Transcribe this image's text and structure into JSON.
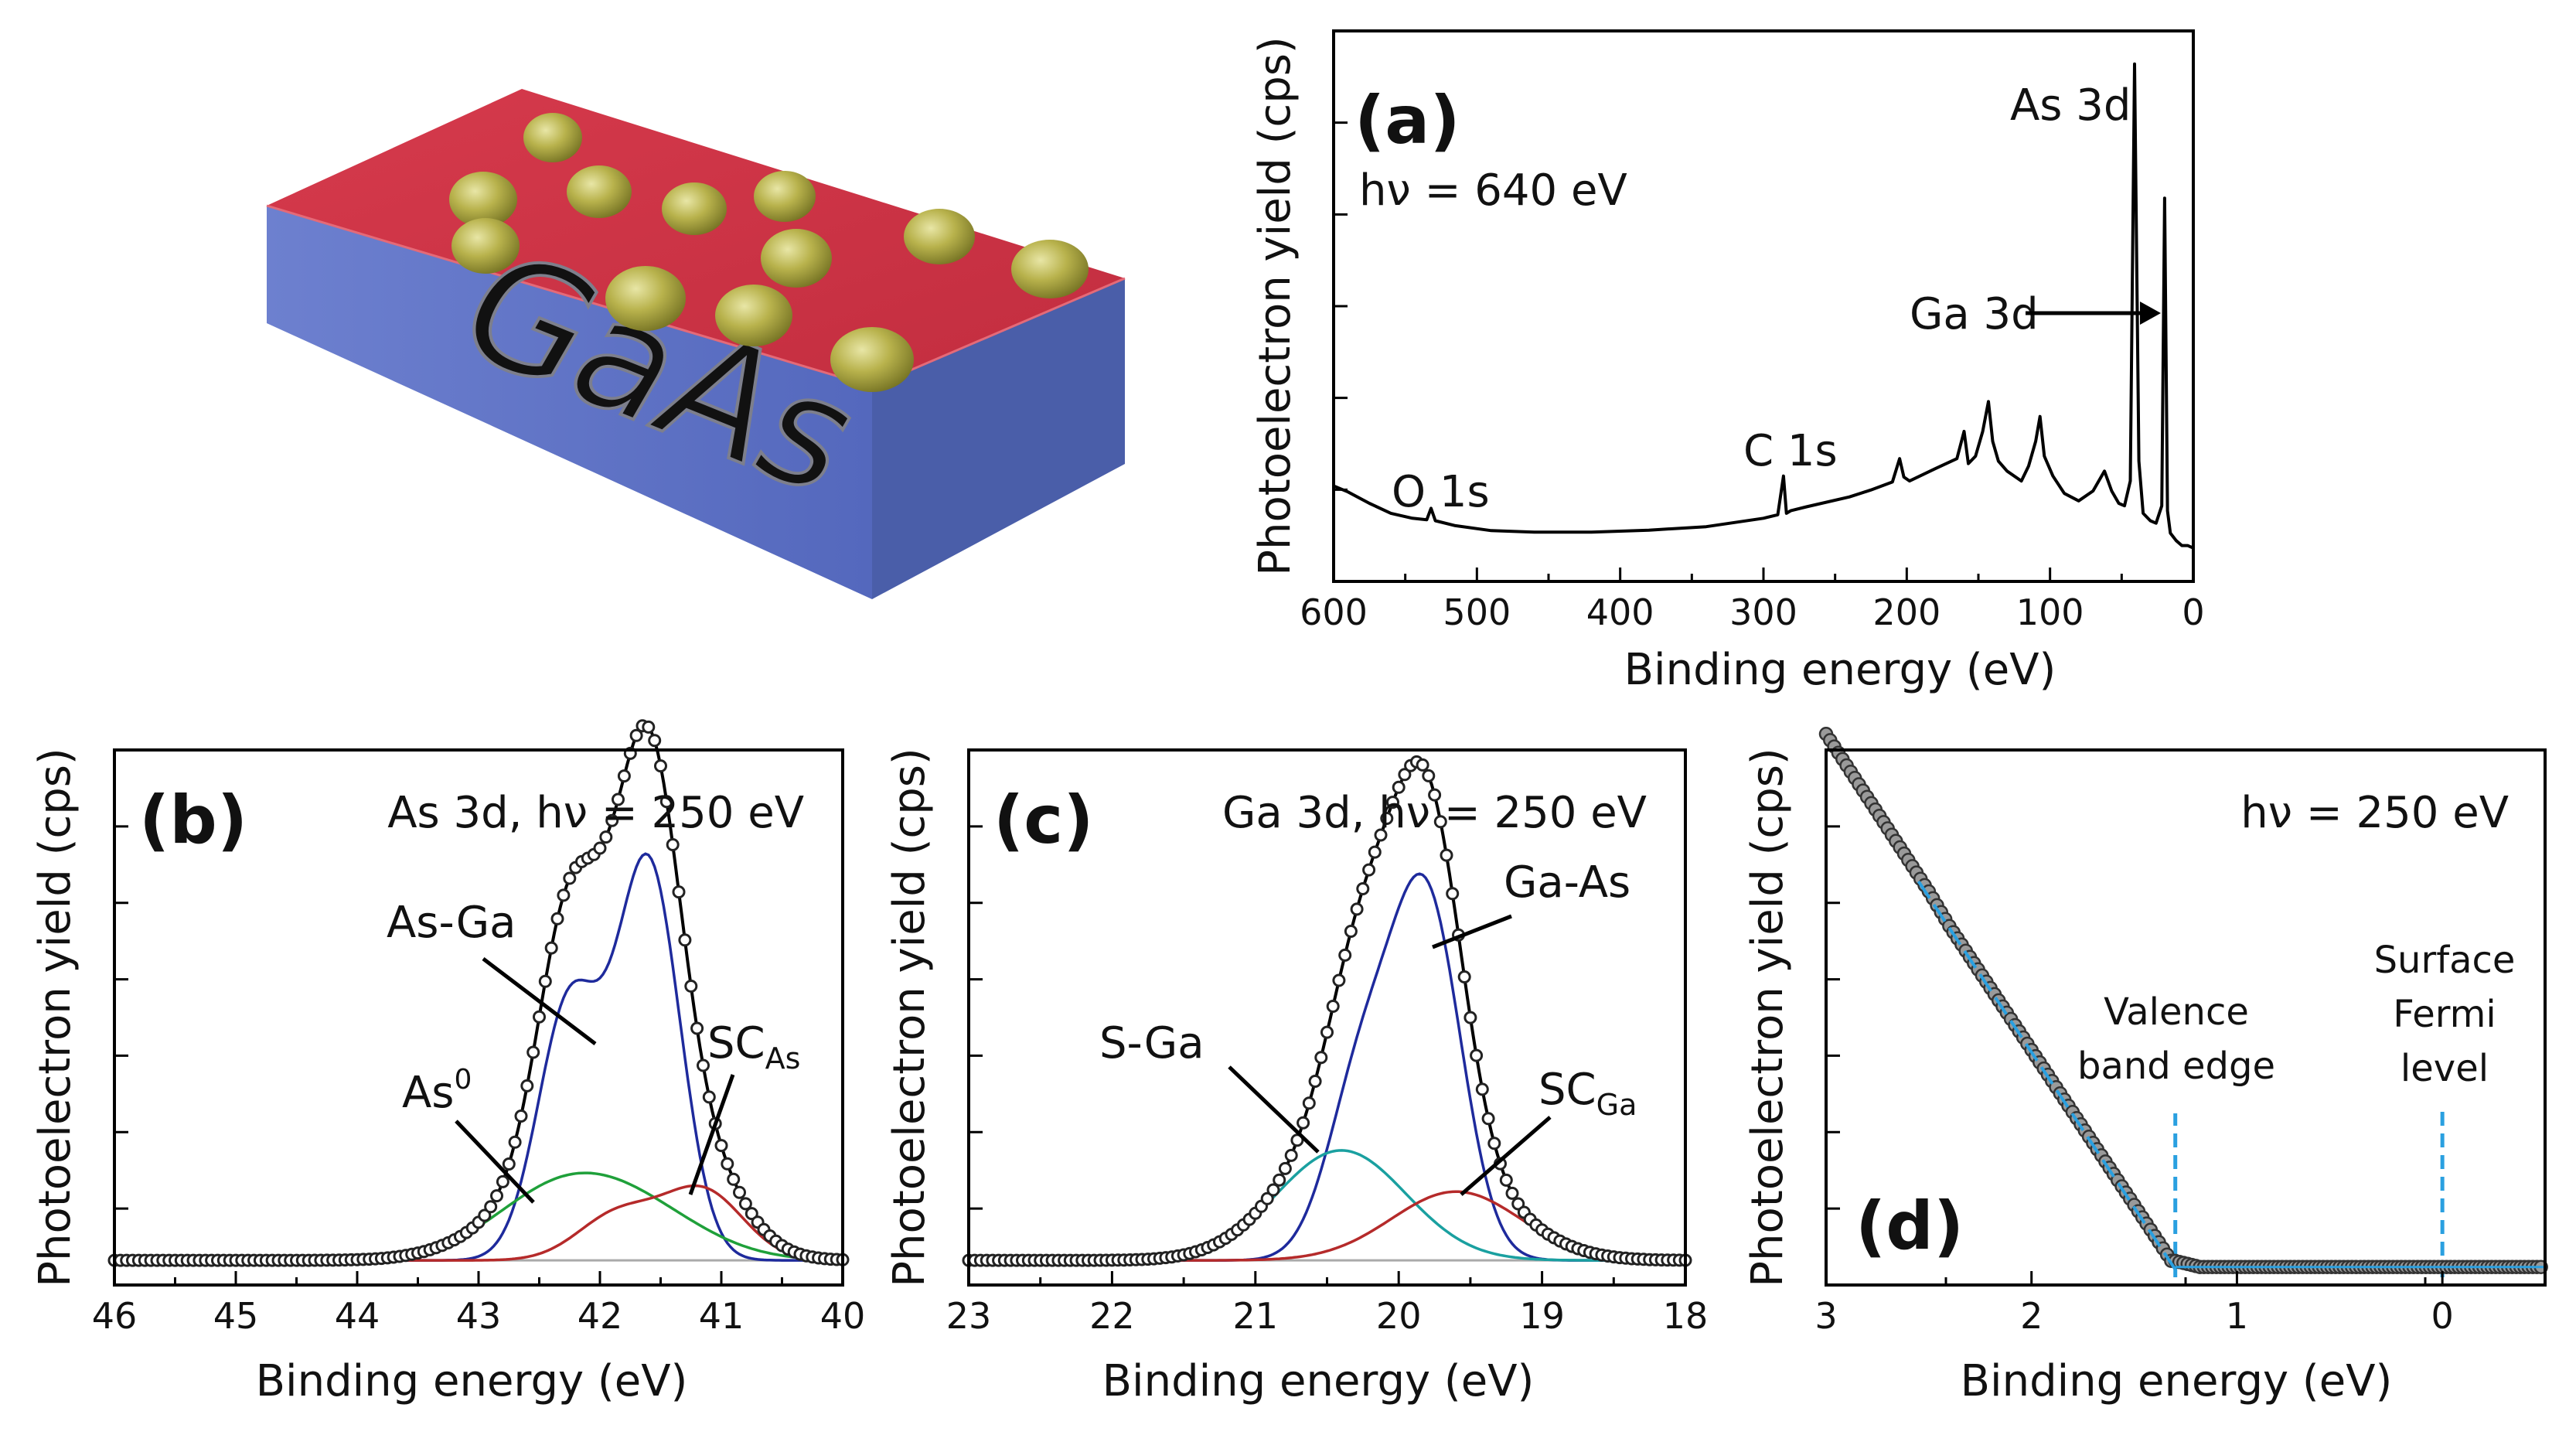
{
  "illustration": {
    "substrate_label": "GaAs",
    "colors": {
      "top": "#cc3344",
      "side_front": "#5a70c4",
      "side_right": "#4c60ad",
      "dots": "#a8a232"
    }
  },
  "chart_data": [
    {
      "id": "a",
      "type": "line",
      "panel_label": "(a)",
      "photon_text": "hν = 640 eV",
      "xlabel": "Binding energy (eV)",
      "ylabel": "Photoelectron yield (cps)",
      "xlim": [
        600,
        0
      ],
      "ylim": [
        0,
        100
      ],
      "xticks": [
        "600",
        "500",
        "400",
        "300",
        "200",
        "100",
        "0"
      ],
      "x": [
        600,
        590,
        575,
        560,
        545,
        535,
        532,
        529,
        515,
        490,
        460,
        420,
        380,
        340,
        300,
        290,
        286,
        284,
        281,
        270,
        240,
        225,
        210,
        205,
        202,
        198,
        180,
        165,
        160,
        157,
        152,
        147,
        143,
        140,
        136,
        130,
        120,
        115,
        110,
        107,
        104,
        98,
        90,
        80,
        70,
        62,
        57,
        52,
        48,
        44,
        41,
        38,
        35,
        30,
        26,
        22,
        20,
        18,
        16,
        12,
        8,
        4,
        0
      ],
      "y": [
        13,
        11.8,
        9.5,
        7.5,
        6.5,
        6.2,
        8.5,
        6.0,
        5.0,
        4.0,
        3.7,
        3.7,
        4.1,
        4.8,
        6.5,
        7.2,
        15.0,
        7.5,
        8.0,
        8.8,
        10.8,
        12.2,
        13.8,
        18.5,
        14.8,
        14.0,
        16.5,
        18.5,
        24.0,
        17.5,
        19.0,
        24.0,
        30.0,
        22.0,
        18.0,
        16.0,
        14.0,
        17.0,
        22.0,
        27.0,
        19.0,
        15.0,
        11.5,
        10.0,
        12.0,
        16.0,
        12.0,
        9.5,
        9.0,
        14.0,
        98.0,
        18.0,
        7.5,
        6.0,
        5.5,
        9.0,
        71.0,
        8.0,
        3.5,
        2.0,
        1.0,
        1.0,
        0.5
      ],
      "series_color": "#000000",
      "annotations": [
        "As 3d",
        "Ga 3d",
        "C 1s",
        "O 1s"
      ]
    },
    {
      "id": "b",
      "type": "line",
      "panel_label": "(b)",
      "corner_text": "As 3d, hν = 250 eV",
      "xlabel": "Binding energy (eV)",
      "ylabel": "Photoelectron yield (cps)",
      "xlim": [
        46,
        40
      ],
      "xticks": [
        "46",
        "45",
        "44",
        "43",
        "42",
        "41",
        "40"
      ],
      "ylim": [
        0,
        1.1
      ],
      "background": 0.02,
      "components": [
        {
          "name": "As-Ga",
          "color": "#1e2a9c",
          "peaks": [
            {
              "center": 41.6,
              "height": 0.86,
              "width": 0.26
            },
            {
              "center": 42.25,
              "height": 0.56,
              "width": 0.26
            }
          ]
        },
        {
          "name": "As0",
          "color": "#1fa03a",
          "peaks": [
            {
              "center": 42.35,
              "height": 0.14,
              "width": 0.55
            },
            {
              "center": 41.65,
              "height": 0.09,
              "width": 0.55
            }
          ]
        },
        {
          "name": "SC_As",
          "color": "#b52a2a",
          "peaks": [
            {
              "center": 41.15,
              "height": 0.15,
              "width": 0.33
            },
            {
              "center": 41.85,
              "height": 0.1,
              "width": 0.33
            }
          ]
        }
      ],
      "label_as_ga": "As-Ga",
      "label_as0_main": "As",
      "label_as0_sup": "0",
      "label_sc_main": "SC",
      "label_sc_sub": "As"
    },
    {
      "id": "c",
      "type": "line",
      "panel_label": "(c)",
      "corner_text": "Ga 3d, hν = 250 eV",
      "xlabel": "Binding energy (eV)",
      "ylabel": "Photoelectron yield (cps)",
      "xlim": [
        23,
        18
      ],
      "xticks": [
        "23",
        "22",
        "21",
        "20",
        "19",
        "18"
      ],
      "ylim": [
        0,
        1.1
      ],
      "background": 0.02,
      "components": [
        {
          "name": "Ga-As",
          "color": "#1e2a9c",
          "peaks": [
            {
              "center": 19.8,
              "height": 0.76,
              "width": 0.24
            },
            {
              "center": 20.25,
              "height": 0.4,
              "width": 0.24
            }
          ]
        },
        {
          "name": "S-Ga",
          "color": "#1aa0a0",
          "peaks": [
            {
              "center": 20.4,
              "height": 0.24,
              "width": 0.45
            }
          ]
        },
        {
          "name": "SC_Ga",
          "color": "#b52a2a",
          "peaks": [
            {
              "center": 19.6,
              "height": 0.15,
              "width": 0.45
            }
          ]
        }
      ],
      "label_ga_as": "Ga-As",
      "label_s_ga": "S-Ga",
      "label_sc_main": "SC",
      "label_sc_sub": "Ga"
    },
    {
      "id": "d",
      "type": "scatter",
      "panel_label": "(d)",
      "corner_text": "hν = 250 eV",
      "xlabel": "Binding energy (eV)",
      "ylabel": "Photoelectron yield (cps)",
      "xlim": [
        3,
        -0.5
      ],
      "xticks": [
        "3",
        "2",
        "1",
        "0"
      ],
      "ylim": [
        0,
        1.0
      ],
      "valence_band_edge": 1.3,
      "fermi_level": 0,
      "fit_line": {
        "x": [
          2.55,
          1.3
        ],
        "y": [
          0.77,
          0.0
        ],
        "color": "#2aa0e0"
      },
      "markers_color": "#9a9a9a",
      "label_valence": [
        "Valence",
        "band edge"
      ],
      "label_fermi": [
        "Surface",
        "Fermi",
        "level"
      ]
    }
  ]
}
